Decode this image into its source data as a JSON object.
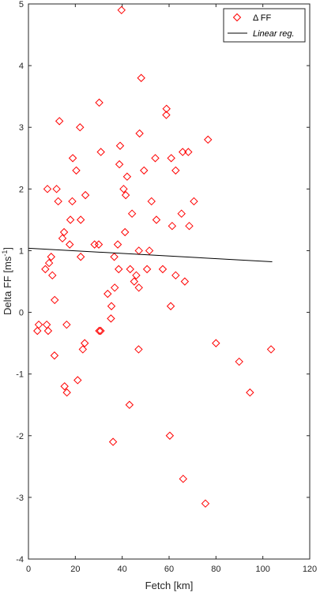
{
  "chart_data": {
    "type": "scatter",
    "xlabel": "Fetch [km]",
    "ylabel": "Delta FF [ms",
    "ylabel_sup": "-1",
    "ylabel_close": "]",
    "xlim": [
      0,
      120
    ],
    "ylim": [
      -4,
      5
    ],
    "xticks": [
      0,
      20,
      40,
      60,
      80,
      100,
      120
    ],
    "yticks": [
      -4,
      -3,
      -2,
      -1,
      0,
      1,
      2,
      3,
      4,
      5
    ],
    "grid": false,
    "legend_position": "top-right",
    "series": [
      {
        "name": "Δ FF",
        "marker": "diamond",
        "color": "#ff0000",
        "points": [
          [
            39.7,
            4.9
          ],
          [
            48.1,
            3.8
          ],
          [
            30.2,
            3.4
          ],
          [
            58.9,
            3.3
          ],
          [
            13.2,
            3.1
          ],
          [
            22.0,
            3.0
          ],
          [
            58.8,
            3.2
          ],
          [
            47.4,
            2.9
          ],
          [
            76.6,
            2.8
          ],
          [
            39.1,
            2.7
          ],
          [
            65.8,
            2.6
          ],
          [
            68.2,
            2.6
          ],
          [
            30.9,
            2.6
          ],
          [
            18.9,
            2.5
          ],
          [
            54.1,
            2.5
          ],
          [
            60.9,
            2.5
          ],
          [
            38.8,
            2.4
          ],
          [
            20.4,
            2.3
          ],
          [
            49.3,
            2.3
          ],
          [
            62.8,
            2.3
          ],
          [
            42.1,
            2.2
          ],
          [
            8.1,
            2.0
          ],
          [
            12.0,
            2.0
          ],
          [
            40.6,
            2.0
          ],
          [
            41.5,
            1.9
          ],
          [
            24.3,
            1.9
          ],
          [
            12.7,
            1.8
          ],
          [
            18.7,
            1.8
          ],
          [
            52.5,
            1.8
          ],
          [
            70.6,
            1.8
          ],
          [
            44.2,
            1.6
          ],
          [
            65.3,
            1.6
          ],
          [
            17.9,
            1.5
          ],
          [
            22.3,
            1.5
          ],
          [
            54.6,
            1.5
          ],
          [
            61.3,
            1.4
          ],
          [
            68.6,
            1.4
          ],
          [
            15.2,
            1.3
          ],
          [
            41.2,
            1.3
          ],
          [
            14.5,
            1.2
          ],
          [
            17.6,
            1.1
          ],
          [
            28.2,
            1.1
          ],
          [
            30.0,
            1.1
          ],
          [
            38.1,
            1.1
          ],
          [
            47.1,
            1.0
          ],
          [
            51.6,
            1.0
          ],
          [
            22.3,
            0.9
          ],
          [
            9.7,
            0.9
          ],
          [
            36.6,
            0.9
          ],
          [
            8.8,
            0.8
          ],
          [
            7.2,
            0.7
          ],
          [
            43.4,
            0.7
          ],
          [
            38.5,
            0.7
          ],
          [
            50.6,
            0.7
          ],
          [
            57.3,
            0.7
          ],
          [
            10.2,
            0.6
          ],
          [
            46.0,
            0.6
          ],
          [
            62.8,
            0.6
          ],
          [
            45.1,
            0.5
          ],
          [
            66.7,
            0.5
          ],
          [
            36.8,
            0.4
          ],
          [
            47.1,
            0.4
          ],
          [
            33.8,
            0.3
          ],
          [
            11.2,
            0.2
          ],
          [
            35.4,
            0.1
          ],
          [
            60.7,
            0.1
          ],
          [
            35.2,
            -0.1
          ],
          [
            4.4,
            -0.2
          ],
          [
            7.8,
            -0.2
          ],
          [
            16.3,
            -0.2
          ],
          [
            3.8,
            -0.3
          ],
          [
            8.4,
            -0.3
          ],
          [
            30.2,
            -0.3
          ],
          [
            30.8,
            -0.3
          ],
          [
            24.0,
            -0.5
          ],
          [
            80.0,
            -0.5
          ],
          [
            23.2,
            -0.6
          ],
          [
            47.0,
            -0.6
          ],
          [
            103.5,
            -0.6
          ],
          [
            11.1,
            -0.7
          ],
          [
            89.9,
            -0.8
          ],
          [
            21.0,
            -1.1
          ],
          [
            15.4,
            -1.2
          ],
          [
            16.4,
            -1.3
          ],
          [
            94.5,
            -1.3
          ],
          [
            43.1,
            -1.5
          ],
          [
            60.3,
            -2.0
          ],
          [
            36.1,
            -2.1
          ],
          [
            66.0,
            -2.7
          ],
          [
            75.5,
            -3.1
          ]
        ]
      },
      {
        "name": "Linear reg.",
        "line": true,
        "color": "#000000",
        "points": [
          [
            0,
            1.04
          ],
          [
            104,
            0.82
          ]
        ]
      }
    ]
  }
}
